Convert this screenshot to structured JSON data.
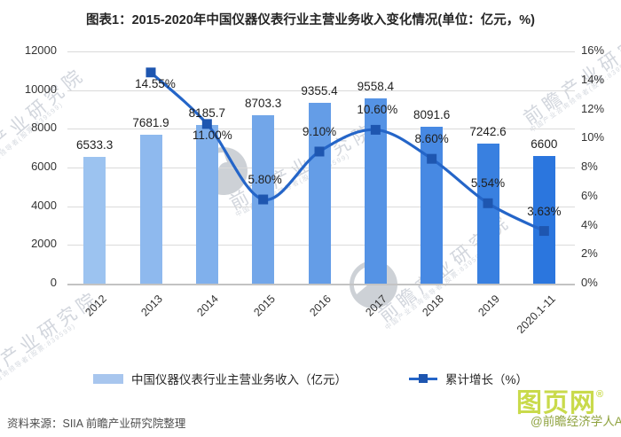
{
  "title": "图表1：2015-2020年中国仪器仪表行业主营业务收入变化情况(单位：亿元，%)",
  "chart_data": {
    "type": "combo",
    "categories": [
      "2012",
      "2013",
      "2014",
      "2015",
      "2016",
      "2017",
      "2018",
      "2019",
      "2020.1-11"
    ],
    "series": [
      {
        "name": "中国仪器仪表行业主营业务收入（亿元）",
        "type": "bar",
        "axis": "left",
        "values": [
          6533.3,
          7681.9,
          8185.7,
          8703.3,
          9355.4,
          9558.4,
          8091.6,
          7242.6,
          6600
        ],
        "labels": [
          "6533.3",
          "7681.9",
          "8185.7",
          "8703.3",
          "9355.4",
          "9558.4",
          "8091.6",
          "7242.6",
          "6600"
        ],
        "bar_colors": [
          "#9CC3F0",
          "#8EB9EE",
          "#80B0EC",
          "#72A6E9",
          "#649DE7",
          "#5593E5",
          "#4789E3",
          "#3980E0",
          "#2B76DE"
        ]
      },
      {
        "name": "累计增长（%）",
        "type": "line",
        "axis": "right",
        "values": [
          null,
          14.55,
          11.0,
          5.8,
          9.1,
          10.6,
          8.6,
          5.54,
          3.63
        ],
        "labels": [
          "",
          "14.55%",
          "11.00%",
          "5.80%",
          "9.10%",
          "10.60%",
          "8.60%",
          "5.54%",
          "3.63%"
        ],
        "label_position": [
          "",
          "below",
          "below",
          "above",
          "above",
          "above",
          "above",
          "above",
          "above"
        ],
        "label_dx": [
          0,
          5,
          6,
          2,
          0,
          2,
          0,
          0,
          0
        ],
        "line_color": "#2465C8",
        "marker_color": "#1E56B0"
      }
    ],
    "left_axis": {
      "min": 0,
      "max": 12000,
      "ticks": [
        "12000",
        "10000",
        "8000",
        "6000",
        "4000",
        "2000",
        "0"
      ]
    },
    "right_axis": {
      "min": 0,
      "max": 16,
      "ticks": [
        "16%",
        "14%",
        "12%",
        "10%",
        "8%",
        "6%",
        "4%",
        "2%",
        "0%"
      ]
    },
    "grid": true,
    "legend_position": "bottom"
  },
  "legend": {
    "bar_label": "中国仪器仪表行业主营业务收入（亿元）",
    "line_label": "累计增长（%）"
  },
  "source": "资料来源：SIIA 前瞻产业研究院整理",
  "watermark": {
    "brand": "前瞻产业研究院",
    "tagline": "中国产业咨询领导者(股票:839599)",
    "corner_logo": "图页网",
    "registered": "®",
    "corner_app": "@前瞻经济学人APP"
  },
  "colors": {
    "legend_swatch": "#A8C6EE",
    "line": "#2465C8",
    "marker": "#1E56B0",
    "gridline": "#dadada",
    "corner_logo_green": "#C9DA4B",
    "corner_app_green": "#8FA23F",
    "watermark_gray": "#d2d6dd"
  }
}
